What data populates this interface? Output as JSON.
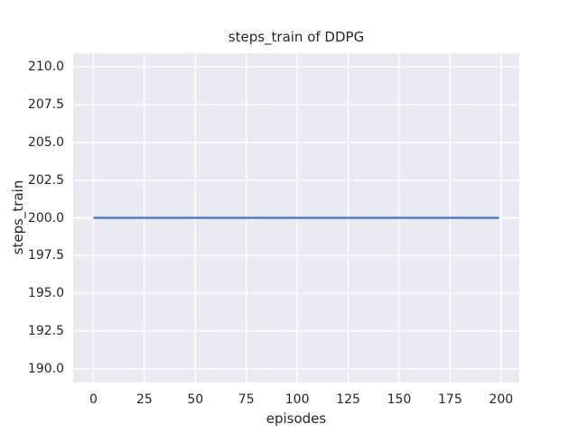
{
  "chart_data": {
    "type": "line",
    "title": "steps_train of DDPG",
    "xlabel": "episodes",
    "ylabel": "steps_train",
    "x_ticks": [
      0,
      25,
      50,
      75,
      100,
      125,
      150,
      175,
      200
    ],
    "x_tick_labels": [
      "0",
      "25",
      "50",
      "75",
      "100",
      "125",
      "150",
      "175",
      "200"
    ],
    "y_ticks": [
      190.0,
      192.5,
      195.0,
      197.5,
      200.0,
      202.5,
      205.0,
      207.5,
      210.0
    ],
    "y_tick_labels": [
      "190.0",
      "192.5",
      "195.0",
      "197.5",
      "200.0",
      "202.5",
      "205.0",
      "207.5",
      "210.0"
    ],
    "xlim": [
      -9.95,
      208.95
    ],
    "ylim": [
      189.1,
      210.9
    ],
    "grid": true,
    "legend": "none",
    "series": [
      {
        "name": "steps_train",
        "x": [
          0,
          199
        ],
        "y": [
          200,
          200
        ],
        "color": "#4C72B0",
        "linewidth": 2.2
      }
    ],
    "colors": {
      "figure_background": "#FFFFFF",
      "axes_background": "#EAEAF2",
      "grid_color": "#FFFFFF",
      "text_color": "#262626"
    }
  }
}
